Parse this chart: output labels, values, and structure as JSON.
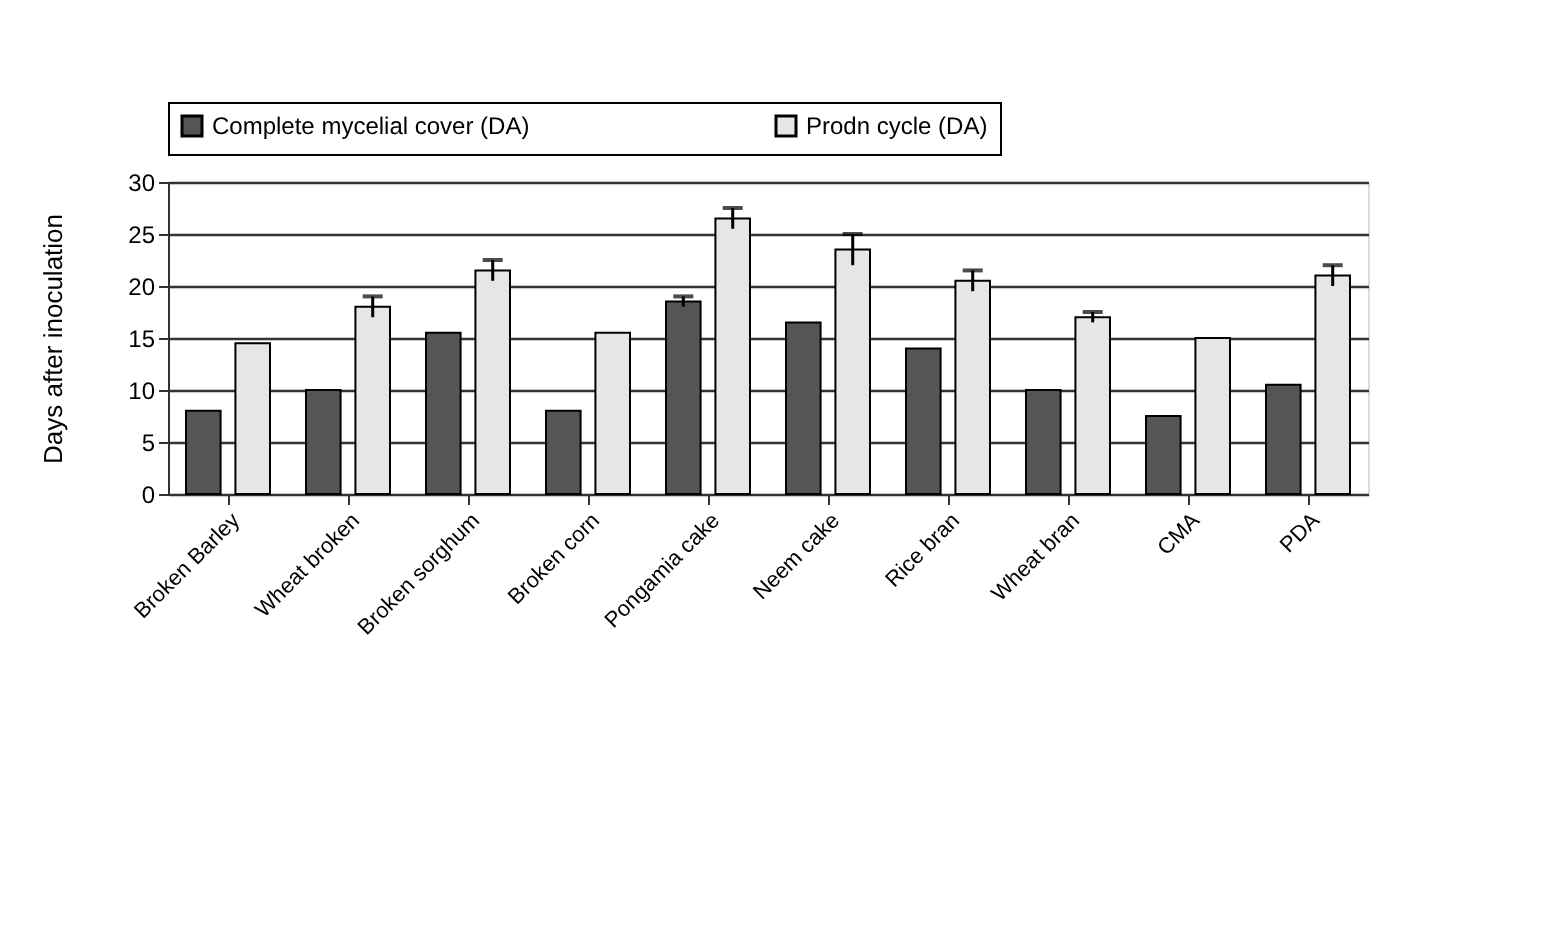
{
  "chart_data": {
    "type": "bar",
    "ylabel": "Days after inoculation",
    "categories": [
      "Broken Barley",
      "Wheat  broken",
      "Broken sorghum",
      "Broken corn",
      "Pongamia cake",
      "Neem cake",
      "Rice bran",
      "Wheat bran",
      "CMA",
      "PDA"
    ],
    "series": [
      {
        "name": "Complete mycelial cover (DA)",
        "color": "#555555",
        "values": [
          8,
          10,
          15.5,
          8,
          18.5,
          16.5,
          14,
          10,
          7.5,
          10.5
        ],
        "errors": [
          null,
          null,
          null,
          null,
          0.5,
          null,
          null,
          null,
          null,
          null
        ]
      },
      {
        "name": "Prodn cycle (DA)",
        "color": "#e6e6e6",
        "values": [
          14.5,
          18,
          21.5,
          15.5,
          26.5,
          23.5,
          20.5,
          17,
          15,
          21
        ],
        "errors": [
          null,
          1,
          1,
          null,
          1,
          1.5,
          1,
          0.5,
          null,
          1
        ]
      }
    ],
    "ylim": [
      0,
      30
    ],
    "yticks": [
      0,
      5,
      10,
      15,
      20,
      25,
      30
    ],
    "grid": "y",
    "legend": "top left"
  }
}
